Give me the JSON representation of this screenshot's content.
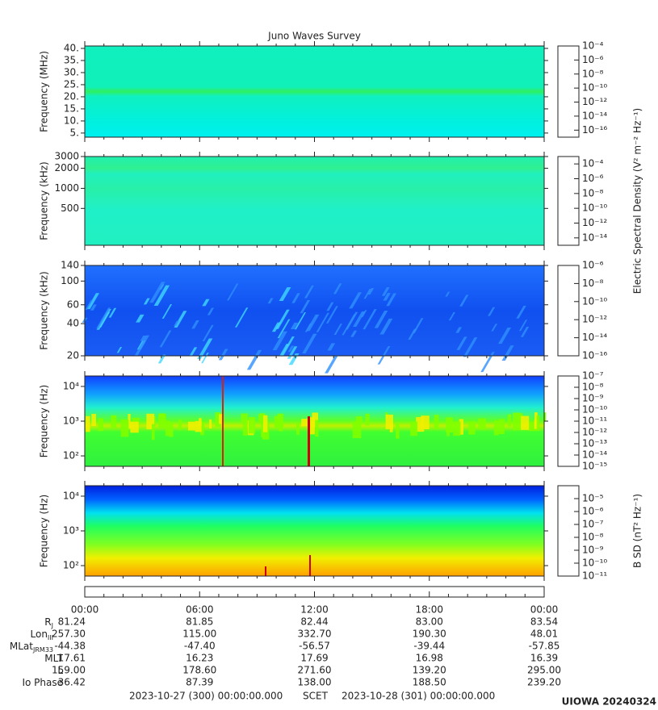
{
  "chart_data": [
    {
      "type": "spectrogram",
      "title": "Juno Waves Survey",
      "ylabel": "Frequency (MHz)",
      "yscale": "linear",
      "ylim": [
        3.3,
        41
      ],
      "yticks": [
        {
          "value": 5,
          "label": "5."
        },
        {
          "value": 10,
          "label": "10."
        },
        {
          "value": 15,
          "label": "15."
        },
        {
          "value": 20,
          "label": "20."
        },
        {
          "value": 25,
          "label": "25."
        },
        {
          "value": 30,
          "label": "30."
        },
        {
          "value": 35,
          "label": "35."
        },
        {
          "value": 40,
          "label": "40."
        }
      ],
      "clim": [
        1e-17,
        0.0001
      ],
      "cticks": [
        {
          "value": 0.0001,
          "label": "10⁻⁴"
        },
        {
          "value": 1e-06,
          "label": "10⁻⁶"
        },
        {
          "value": 1e-08,
          "label": "10⁻⁸"
        },
        {
          "value": 1e-10,
          "label": "10⁻¹⁰"
        },
        {
          "value": 1e-12,
          "label": "10⁻¹²"
        },
        {
          "value": 1e-14,
          "label": "10⁻¹⁴"
        },
        {
          "value": 1e-16,
          "label": "10⁻¹⁶"
        }
      ]
    },
    {
      "type": "spectrogram",
      "ylabel": "Frequency (kHz)",
      "yscale": "log",
      "ylim": [
        140,
        3000
      ],
      "yticks": [
        500,
        1000,
        2000,
        3000
      ],
      "clim": [
        1e-15,
        0.001
      ],
      "cticks": [
        {
          "value": 0.0001,
          "label": "10⁻⁴"
        },
        {
          "value": 1e-06,
          "label": "10⁻⁶"
        },
        {
          "value": 1e-08,
          "label": "10⁻⁸"
        },
        {
          "value": 1e-10,
          "label": "10⁻¹⁰"
        },
        {
          "value": 1e-12,
          "label": "10⁻¹²"
        },
        {
          "value": 1e-14,
          "label": "10⁻¹⁴"
        }
      ],
      "colorbar_label": "Electric Spectral Density (V² m⁻² Hz⁻¹)"
    },
    {
      "type": "spectrogram",
      "ylabel": "Frequency (kHz)",
      "yscale": "log",
      "ylim": [
        20,
        140
      ],
      "yticks": [
        20,
        40,
        60,
        100,
        140
      ],
      "clim": [
        1e-16,
        1e-06
      ],
      "cticks": [
        {
          "value": 1e-06,
          "label": "10⁻⁶"
        },
        {
          "value": 1e-08,
          "label": "10⁻⁸"
        },
        {
          "value": 1e-10,
          "label": "10⁻¹⁰"
        },
        {
          "value": 1e-12,
          "label": "10⁻¹²"
        },
        {
          "value": 1e-14,
          "label": "10⁻¹⁴"
        },
        {
          "value": 1e-16,
          "label": "10⁻¹⁶"
        }
      ]
    },
    {
      "type": "spectrogram",
      "ylabel": "Frequency (Hz)",
      "yscale": "log",
      "ylim": [
        50,
        20000
      ],
      "yticks": [
        {
          "value": 100,
          "label": "10²"
        },
        {
          "value": 1000,
          "label": "10³"
        },
        {
          "value": 10000,
          "label": "10⁴"
        }
      ],
      "clim": [
        1e-15,
        1e-07
      ],
      "cticks": [
        {
          "value": 1e-07,
          "label": "10⁻⁷"
        },
        {
          "value": 1e-08,
          "label": "10⁻⁸"
        },
        {
          "value": 1e-09,
          "label": "10⁻⁹"
        },
        {
          "value": 1e-10,
          "label": "10⁻¹⁰"
        },
        {
          "value": 1e-11,
          "label": "10⁻¹¹"
        },
        {
          "value": 1e-12,
          "label": "10⁻¹²"
        },
        {
          "value": 1e-13,
          "label": "10⁻¹³"
        },
        {
          "value": 1e-14,
          "label": "10⁻¹⁴"
        },
        {
          "value": 1e-15,
          "label": "10⁻¹⁵"
        }
      ]
    },
    {
      "type": "spectrogram",
      "ylabel": "Frequency (Hz)",
      "yscale": "log",
      "ylim": [
        50,
        20000
      ],
      "yticks": [
        {
          "value": 100,
          "label": "10²"
        },
        {
          "value": 1000,
          "label": "10³"
        },
        {
          "value": 10000,
          "label": "10⁴"
        }
      ],
      "clim": [
        1e-11,
        0.0001
      ],
      "cticks": [
        {
          "value": 1e-05,
          "label": "10⁻⁵"
        },
        {
          "value": 1e-06,
          "label": "10⁻⁶"
        },
        {
          "value": 1e-07,
          "label": "10⁻⁷"
        },
        {
          "value": 1e-08,
          "label": "10⁻⁸"
        },
        {
          "value": 1e-09,
          "label": "10⁻⁹"
        },
        {
          "value": 1e-10,
          "label": "10⁻¹⁰"
        },
        {
          "value": 1e-11,
          "label": "10⁻¹¹"
        }
      ],
      "colorbar_label": "B SD (nT² Hz⁻¹)"
    }
  ],
  "time_axis": {
    "xlim": [
      0,
      24
    ],
    "xticks": [
      {
        "value": 0,
        "label": "00:00"
      },
      {
        "value": 6,
        "label": "06:00"
      },
      {
        "value": 12,
        "label": "12:00"
      },
      {
        "value": 18,
        "label": "18:00"
      },
      {
        "value": 24,
        "label": "00:00"
      }
    ],
    "xminorticks": [
      1,
      2,
      3,
      4,
      5,
      7,
      8,
      9,
      10,
      11,
      13,
      14,
      15,
      16,
      17,
      19,
      20,
      21,
      22,
      23
    ]
  },
  "ephemeris": {
    "rows": [
      {
        "label": "R",
        "sub": "J",
        "values": [
          "81.24",
          "81.85",
          "82.44",
          "83.00",
          "83.54"
        ]
      },
      {
        "label": "Lon",
        "sub": "III",
        "values": [
          "257.30",
          "115.00",
          "332.70",
          "190.30",
          "48.01"
        ]
      },
      {
        "label": "MLat",
        "sub": "JRM33",
        "values": [
          "-44.38",
          "-47.40",
          "-56.57",
          "-39.44",
          "-57.85"
        ]
      },
      {
        "label": "MLT",
        "values": [
          "17.61",
          "16.23",
          "17.69",
          "16.98",
          "16.39"
        ]
      },
      {
        "label": "L",
        "values": [
          "159.00",
          "178.60",
          "271.60",
          "139.20",
          "295.00"
        ]
      },
      {
        "label": "Io Phase",
        "values": [
          "36.42",
          "87.39",
          "138.00",
          "188.50",
          "239.20"
        ]
      }
    ]
  },
  "footer": {
    "start": "2023-10-27 (300) 00:00:00.000",
    "scet": "SCET",
    "end": "2023-10-28 (301) 00:00:00.000",
    "stamp": "UIOWA 20240324"
  }
}
